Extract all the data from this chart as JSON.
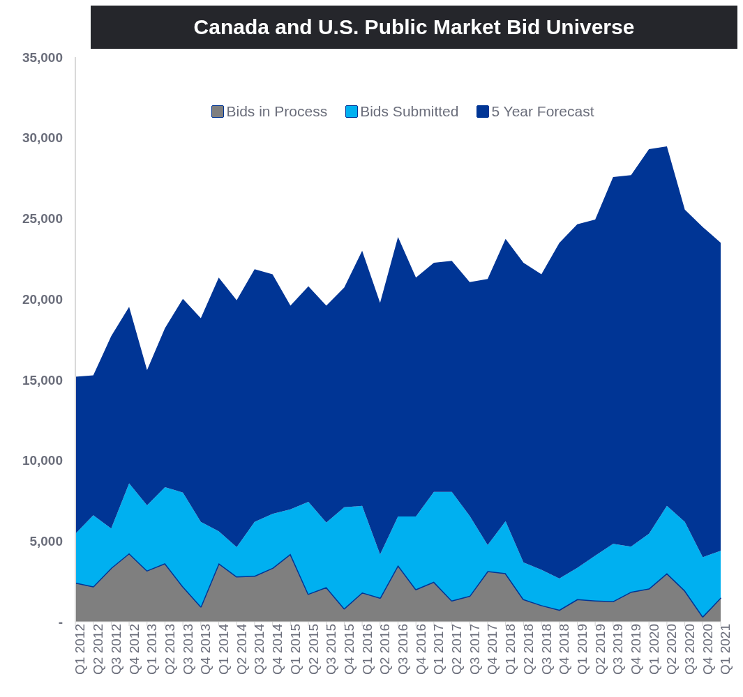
{
  "chart_data": {
    "type": "area",
    "stacked": true,
    "title": "Canada and U.S. Public Market Bid Universe",
    "categories": [
      "Q1 2012",
      "Q2 2012",
      "Q3 2012",
      "Q4 2012",
      "Q1 2013",
      "Q2 2013",
      "Q3 2013",
      "Q4 2013",
      "Q1 2014",
      "Q2 2014",
      "Q3 2014",
      "Q4 2014",
      "Q1 2015",
      "Q2 2015",
      "Q3 2015",
      "Q4 2015",
      "Q1 2016",
      "Q2 2016",
      "Q3 2016",
      "Q4 2016",
      "Q1 2017",
      "Q2 2017",
      "Q3 2017",
      "Q4 2017",
      "Q1 2018",
      "Q2 2018",
      "Q3 2018",
      "Q4 2018",
      "Q1 2019",
      "Q2 2019",
      "Q3 2019",
      "Q4 2019",
      "Q1 2020",
      "Q2 2020",
      "Q3 2020",
      "Q4 2020",
      "Q1 2021"
    ],
    "series": [
      {
        "name": "Bids in Process",
        "color": "#7f7f7f",
        "values": [
          2430,
          2190,
          3340,
          4250,
          3180,
          3630,
          2190,
          950,
          3630,
          2810,
          2850,
          3340,
          4210,
          1730,
          2150,
          830,
          1820,
          1490,
          3510,
          2020,
          2480,
          1320,
          1610,
          3140,
          3010,
          1400,
          1030,
          740,
          1400,
          1320,
          1280,
          1860,
          2060,
          3010,
          1940,
          330,
          1500
        ]
      },
      {
        "name": "Bids Submitted",
        "color": "#00b0f0",
        "values": [
          3020,
          4410,
          2440,
          4330,
          4040,
          4710,
          5820,
          5240,
          1980,
          1810,
          3340,
          3350,
          2760,
          5700,
          4000,
          6270,
          5360,
          2680,
          3010,
          4500,
          5570,
          6730,
          4950,
          1610,
          3220,
          2270,
          2190,
          1940,
          1940,
          2770,
          3550,
          2800,
          3390,
          4170,
          4250,
          3670,
          2900
        ]
      },
      {
        "name": "5 Year Forecast",
        "color": "#003595",
        "values": [
          9740,
          8670,
          11920,
          10940,
          8380,
          9860,
          12010,
          12630,
          15730,
          15310,
          15660,
          14850,
          12630,
          13370,
          13450,
          13620,
          15820,
          15600,
          17330,
          14820,
          14200,
          14320,
          14490,
          16500,
          17500,
          18580,
          18320,
          20800,
          21300,
          20840,
          22740,
          23030,
          23850,
          22290,
          19360,
          20470,
          19100
        ]
      }
    ],
    "ylim": [
      0,
      35000
    ],
    "yticks": [
      {
        "value": 0,
        "label": "-"
      },
      {
        "value": 5000,
        "label": "5,000"
      },
      {
        "value": 10000,
        "label": "10,000"
      },
      {
        "value": 15000,
        "label": "15,000"
      },
      {
        "value": 20000,
        "label": "20,000"
      },
      {
        "value": 25000,
        "label": "25,000"
      },
      {
        "value": 30000,
        "label": "30,000"
      },
      {
        "value": 35000,
        "label": "35,000"
      }
    ],
    "grid": false,
    "legend": "top"
  }
}
